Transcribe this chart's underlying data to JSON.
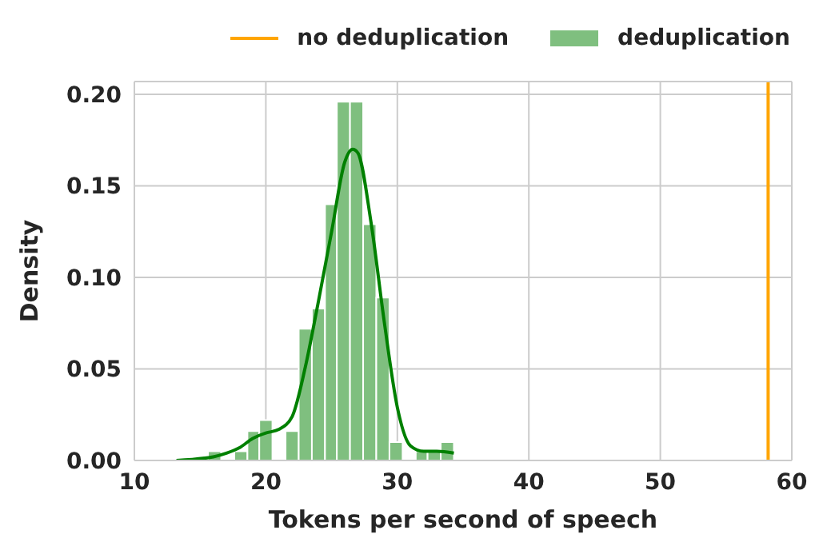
{
  "chart_data": {
    "type": "histogram",
    "xlabel": "Tokens per second of speech",
    "ylabel": "Density",
    "bins": [
      15.6,
      16.6,
      17.6,
      18.6,
      19.5,
      20.5,
      21.5,
      22.5,
      23.5,
      24.5,
      25.4,
      26.4,
      27.4,
      28.4,
      29.4,
      30.4,
      31.4,
      32.3,
      33.3,
      34.3
    ],
    "series": [
      {
        "name": "deduplication",
        "color": "#7fbf7f",
        "values": [
          0.005,
          0,
          0.005,
          0.016,
          0.022,
          0,
          0.016,
          0.072,
          0.083,
          0.14,
          0.196,
          0.196,
          0.129,
          0.089,
          0.01,
          0,
          0.005,
          0.005,
          0.01
        ]
      },
      {
        "type": "line",
        "color": "#008000",
        "x": [
          13.2,
          16,
          17,
          18,
          19,
          20,
          21,
          22,
          23,
          24,
          25,
          26,
          26.6,
          27,
          28,
          29,
          30,
          31,
          32,
          33,
          34.3
        ],
        "values": [
          0,
          0.002,
          0.004,
          0.007,
          0.012,
          0.015,
          0.017,
          0.024,
          0.051,
          0.087,
          0.125,
          0.163,
          0.17,
          0.168,
          0.13,
          0.076,
          0.029,
          0.008,
          0.005,
          0.005,
          0.004
        ]
      }
    ],
    "ref_lines": [
      {
        "axis": "x",
        "value": 58.2,
        "label": "no deduplication",
        "color": "#ffa500"
      }
    ],
    "xlim": [
      10,
      60
    ],
    "xticks": [
      10,
      20,
      30,
      40,
      50,
      60
    ],
    "ylim": [
      0,
      0.207
    ],
    "yticks": [
      {
        "value": 0,
        "label": "0.00"
      },
      {
        "value": 0.05,
        "label": "0.05"
      },
      {
        "value": 0.1,
        "label": "0.10"
      },
      {
        "value": 0.15,
        "label": "0.15"
      },
      {
        "value": 0.2,
        "label": "0.20"
      }
    ],
    "grid": true,
    "legend": "top right"
  }
}
